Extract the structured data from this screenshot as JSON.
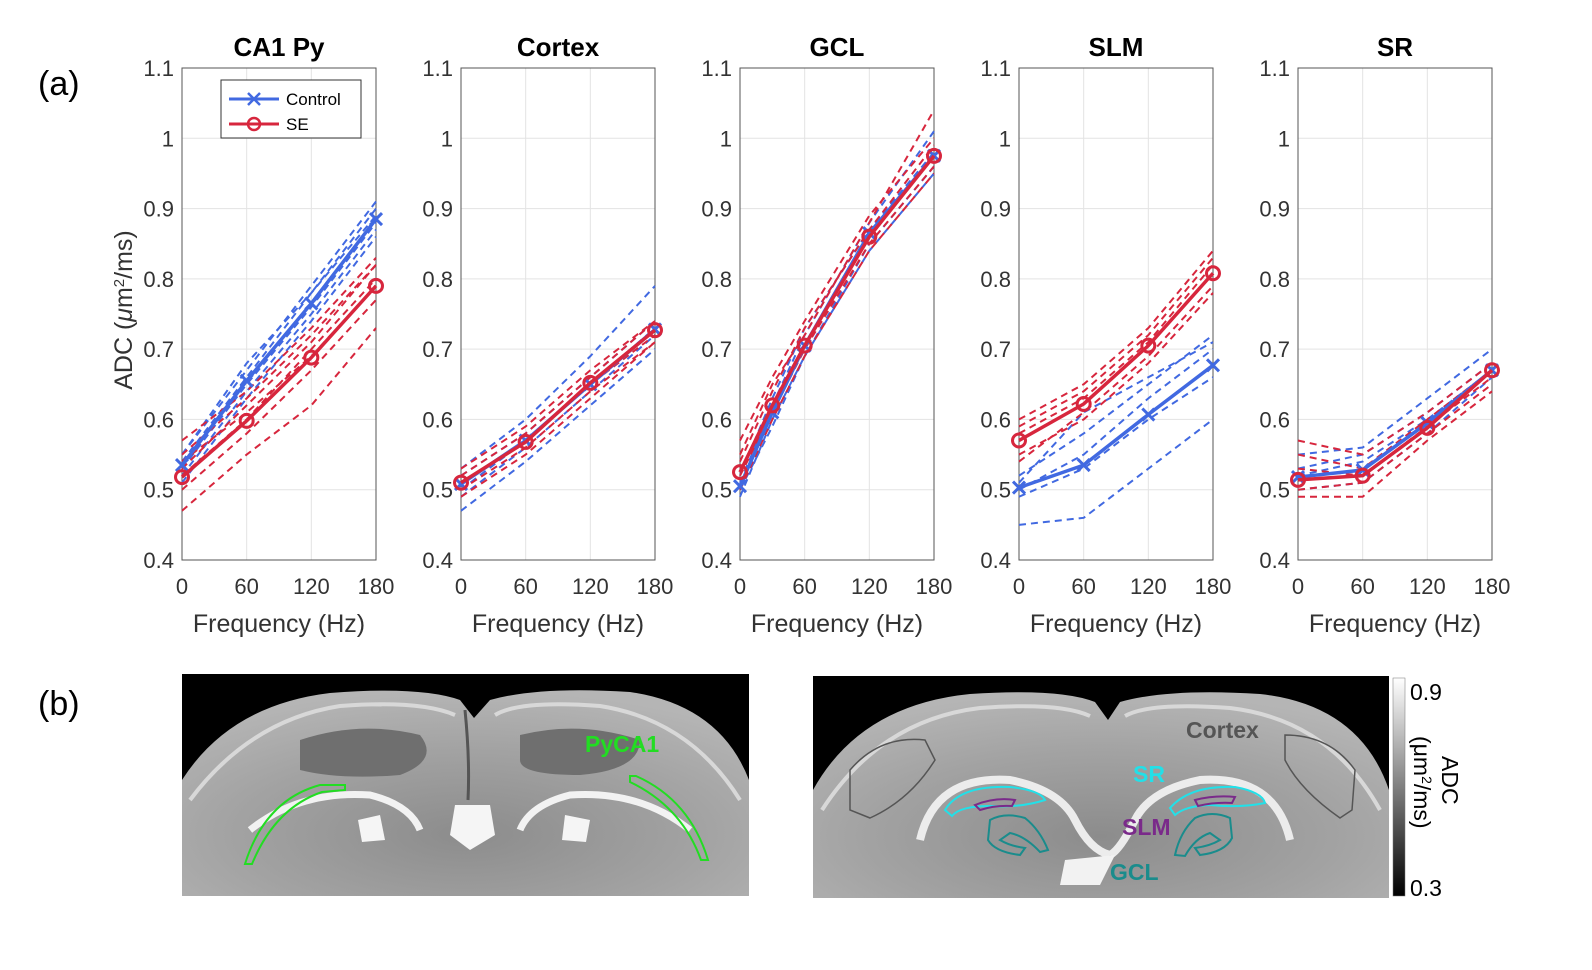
{
  "panel_a_label": "(a)",
  "panel_b_label": "(b)",
  "colors": {
    "control": "#4169e1",
    "se": "#d7263d",
    "grid": "#e3e3e3"
  },
  "ylabel_prefix": "ADC (",
  "ylabel_mu": "μ",
  "ylabel_m": "m",
  "ylabel_sup": "2",
  "ylabel_suffix": "/ms)",
  "legend": {
    "control": "Control",
    "se": "SE"
  },
  "chart_data": [
    {
      "type": "line",
      "title": "CA1 Py",
      "xlabel": "Frequency (Hz)",
      "ylabel": "ADC (μm²/ms)",
      "xticks": [
        "0",
        "60",
        "120",
        "180"
      ],
      "yticks": [
        "0.4",
        "0.5",
        "0.6",
        "0.7",
        "0.8",
        "0.9",
        "1",
        "1.1"
      ],
      "xlim": [
        0,
        180
      ],
      "ylim": [
        0.4,
        1.1
      ],
      "grid": true,
      "series": [
        {
          "name": "Control",
          "x": [
            0,
            60,
            120,
            180
          ],
          "values": [
            0.535,
            0.655,
            0.765,
            0.885
          ]
        },
        {
          "name": "SE",
          "x": [
            0,
            60,
            120,
            180
          ],
          "values": [
            0.518,
            0.598,
            0.688,
            0.79
          ]
        }
      ],
      "individuals": {
        "Control": [
          [
            0.55,
            0.67,
            0.79,
            0.91
          ],
          [
            0.52,
            0.64,
            0.75,
            0.87
          ],
          [
            0.54,
            0.66,
            0.78,
            0.9
          ],
          [
            0.53,
            0.65,
            0.76,
            0.88
          ],
          [
            0.55,
            0.68,
            0.78,
            0.89
          ],
          [
            0.51,
            0.63,
            0.74,
            0.86
          ]
        ],
        "SE": [
          [
            0.47,
            0.55,
            0.62,
            0.73
          ],
          [
            0.52,
            0.6,
            0.7,
            0.8
          ],
          [
            0.53,
            0.62,
            0.71,
            0.82
          ],
          [
            0.5,
            0.58,
            0.67,
            0.77
          ],
          [
            0.55,
            0.63,
            0.72,
            0.82
          ],
          [
            0.54,
            0.61,
            0.69,
            0.79
          ],
          [
            0.57,
            0.64,
            0.73,
            0.83
          ]
        ]
      }
    },
    {
      "type": "line",
      "title": "Cortex",
      "xlabel": "Frequency (Hz)",
      "ylabel": "",
      "xticks": [
        "0",
        "60",
        "120",
        "180"
      ],
      "yticks": [
        "0.4",
        "0.5",
        "0.6",
        "0.7",
        "0.8",
        "0.9",
        "1",
        "1.1"
      ],
      "xlim": [
        0,
        180
      ],
      "ylim": [
        0.4,
        1.1
      ],
      "grid": true,
      "series": [
        {
          "name": "Control",
          "x": [
            0,
            60,
            120,
            180
          ],
          "values": [
            0.508,
            0.57,
            0.65,
            0.728
          ]
        },
        {
          "name": "SE",
          "x": [
            0,
            60,
            120,
            180
          ],
          "values": [
            0.51,
            0.568,
            0.652,
            0.727
          ]
        }
      ],
      "individuals": {
        "Control": [
          [
            0.47,
            0.54,
            0.62,
            0.7
          ],
          [
            0.53,
            0.6,
            0.69,
            0.79
          ],
          [
            0.49,
            0.56,
            0.64,
            0.72
          ],
          [
            0.52,
            0.58,
            0.66,
            0.74
          ],
          [
            0.5,
            0.57,
            0.65,
            0.73
          ]
        ],
        "SE": [
          [
            0.5,
            0.56,
            0.64,
            0.71
          ],
          [
            0.52,
            0.58,
            0.66,
            0.74
          ],
          [
            0.49,
            0.55,
            0.63,
            0.71
          ],
          [
            0.53,
            0.59,
            0.67,
            0.74
          ],
          [
            0.51,
            0.57,
            0.65,
            0.72
          ]
        ]
      }
    },
    {
      "type": "line",
      "title": "GCL",
      "xlabel": "Frequency (Hz)",
      "ylabel": "",
      "xticks": [
        "0",
        "60",
        "120",
        "180"
      ],
      "yticks": [
        "0.4",
        "0.5",
        "0.6",
        "0.7",
        "0.8",
        "0.9",
        "1",
        "1.1"
      ],
      "xlim": [
        0,
        180
      ],
      "ylim": [
        0.4,
        1.1
      ],
      "grid": true,
      "series": [
        {
          "name": "Control",
          "x": [
            0,
            30,
            60,
            120,
            180
          ],
          "values": [
            0.505,
            0.61,
            0.705,
            0.865,
            0.975
          ]
        },
        {
          "name": "SE",
          "x": [
            0,
            30,
            60,
            120,
            180
          ],
          "values": [
            0.525,
            0.62,
            0.705,
            0.86,
            0.975
          ]
        }
      ],
      "individuals": {
        "Control": [
          [
            0.49,
            0.6,
            0.69,
            0.84,
            0.95
          ],
          [
            0.51,
            0.62,
            0.72,
            0.88,
            1.01
          ],
          [
            0.52,
            0.63,
            0.73,
            0.87,
            0.98
          ],
          [
            0.5,
            0.59,
            0.69,
            0.85,
            0.96
          ]
        ],
        "SE": [
          [
            0.55,
            0.65,
            0.72,
            0.88,
            1.04
          ],
          [
            0.5,
            0.6,
            0.69,
            0.84,
            0.95
          ],
          [
            0.54,
            0.64,
            0.73,
            0.87,
            0.99
          ],
          [
            0.52,
            0.61,
            0.7,
            0.85,
            0.96
          ],
          [
            0.57,
            0.66,
            0.74,
            0.89,
            1.0
          ]
        ]
      }
    },
    {
      "type": "line",
      "title": "SLM",
      "xlabel": "Frequency (Hz)",
      "ylabel": "",
      "xticks": [
        "0",
        "60",
        "120",
        "180"
      ],
      "yticks": [
        "0.4",
        "0.5",
        "0.6",
        "0.7",
        "0.8",
        "0.9",
        "1",
        "1.1"
      ],
      "xlim": [
        0,
        180
      ],
      "ylim": [
        0.4,
        1.1
      ],
      "grid": true,
      "series": [
        {
          "name": "Control",
          "x": [
            0,
            60,
            120,
            180
          ],
          "values": [
            0.503,
            0.535,
            0.607,
            0.677
          ]
        },
        {
          "name": "SE",
          "x": [
            0,
            60,
            120,
            180
          ],
          "values": [
            0.57,
            0.622,
            0.705,
            0.808
          ]
        }
      ],
      "individuals": {
        "Control": [
          [
            0.45,
            0.46,
            0.53,
            0.6
          ],
          [
            0.49,
            0.53,
            0.6,
            0.66
          ],
          [
            0.52,
            0.58,
            0.65,
            0.72
          ],
          [
            0.5,
            0.55,
            0.63,
            0.7
          ],
          [
            0.51,
            0.61,
            0.66,
            0.71
          ]
        ],
        "SE": [
          [
            0.6,
            0.65,
            0.73,
            0.84
          ],
          [
            0.55,
            0.6,
            0.68,
            0.78
          ],
          [
            0.58,
            0.63,
            0.71,
            0.82
          ],
          [
            0.54,
            0.61,
            0.69,
            0.79
          ],
          [
            0.59,
            0.64,
            0.72,
            0.83
          ]
        ]
      }
    },
    {
      "type": "line",
      "title": "SR",
      "xlabel": "Frequency (Hz)",
      "ylabel": "",
      "xticks": [
        "0",
        "60",
        "120",
        "180"
      ],
      "yticks": [
        "0.4",
        "0.5",
        "0.6",
        "0.7",
        "0.8",
        "0.9",
        "1",
        "1.1"
      ],
      "xlim": [
        0,
        180
      ],
      "ylim": [
        0.4,
        1.1
      ],
      "grid": true,
      "series": [
        {
          "name": "Control",
          "x": [
            0,
            60,
            120,
            180
          ],
          "values": [
            0.518,
            0.528,
            0.595,
            0.67
          ]
        },
        {
          "name": "SE",
          "x": [
            0,
            60,
            120,
            180
          ],
          "values": [
            0.514,
            0.52,
            0.588,
            0.67
          ]
        }
      ],
      "individuals": {
        "Control": [
          [
            0.55,
            0.56,
            0.63,
            0.7
          ],
          [
            0.53,
            0.55,
            0.61,
            0.68
          ],
          [
            0.5,
            0.51,
            0.58,
            0.66
          ],
          [
            0.52,
            0.54,
            0.6,
            0.67
          ]
        ],
        "SE": [
          [
            0.57,
            0.55,
            0.61,
            0.68
          ],
          [
            0.49,
            0.49,
            0.57,
            0.64
          ],
          [
            0.5,
            0.51,
            0.58,
            0.65
          ],
          [
            0.55,
            0.53,
            0.6,
            0.67
          ],
          [
            0.53,
            0.52,
            0.59,
            0.66
          ]
        ]
      }
    }
  ],
  "brain_left": {
    "roi_label": "PyCA1",
    "roi_color": "#22dd22"
  },
  "brain_right": {
    "labels": {
      "cortex": {
        "text": "Cortex",
        "color": "#555555"
      },
      "sr": {
        "text": "SR",
        "color": "#22e0e8"
      },
      "slm": {
        "text": "SLM",
        "color": "#7a2a8a"
      },
      "gcl": {
        "text": "GCL",
        "color": "#1a8c8c"
      }
    }
  },
  "colorbar": {
    "max": "0.9",
    "min": "0.3",
    "label_prefix": "ADC",
    "label_units": "(μm",
    "label_sup": "2",
    "label_end": "/ms)"
  }
}
